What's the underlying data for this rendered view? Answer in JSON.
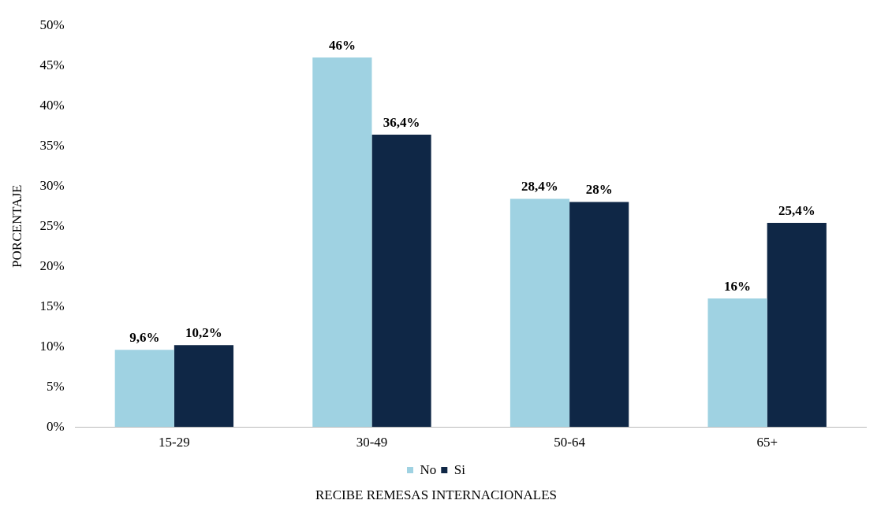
{
  "chart_data": {
    "type": "bar",
    "xlabel": "RECIBE REMESAS INTERNACIONALES",
    "ylabel": "PORCENTAJE",
    "categories": [
      "15-29",
      "30-49",
      "50-64",
      "65+"
    ],
    "series": [
      {
        "name": "No",
        "color": "#9fd2e2",
        "values": [
          9.6,
          46,
          28.4,
          16
        ],
        "value_labels": [
          "9,6%",
          "46%",
          "28,4%",
          "16%"
        ]
      },
      {
        "name": "Si",
        "color": "#0f2746",
        "values": [
          10.2,
          36.4,
          28,
          25.4
        ],
        "value_labels": [
          "10,2%",
          "36,4%",
          "28%",
          "25,4%"
        ]
      }
    ],
    "ylim": [
      0,
      50
    ],
    "yticks": [
      {
        "value": 0,
        "label": "0%"
      },
      {
        "value": 5,
        "label": "5%"
      },
      {
        "value": 10,
        "label": "10%"
      },
      {
        "value": 15,
        "label": "15%"
      },
      {
        "value": 20,
        "label": "20%"
      },
      {
        "value": 25,
        "label": "25%"
      },
      {
        "value": 30,
        "label": "30%"
      },
      {
        "value": 35,
        "label": "35%"
      },
      {
        "value": 40,
        "label": "40%"
      },
      {
        "value": 45,
        "label": "45%"
      },
      {
        "value": 50,
        "label": "50%"
      }
    ],
    "grid": false,
    "legend": "bottom"
  }
}
